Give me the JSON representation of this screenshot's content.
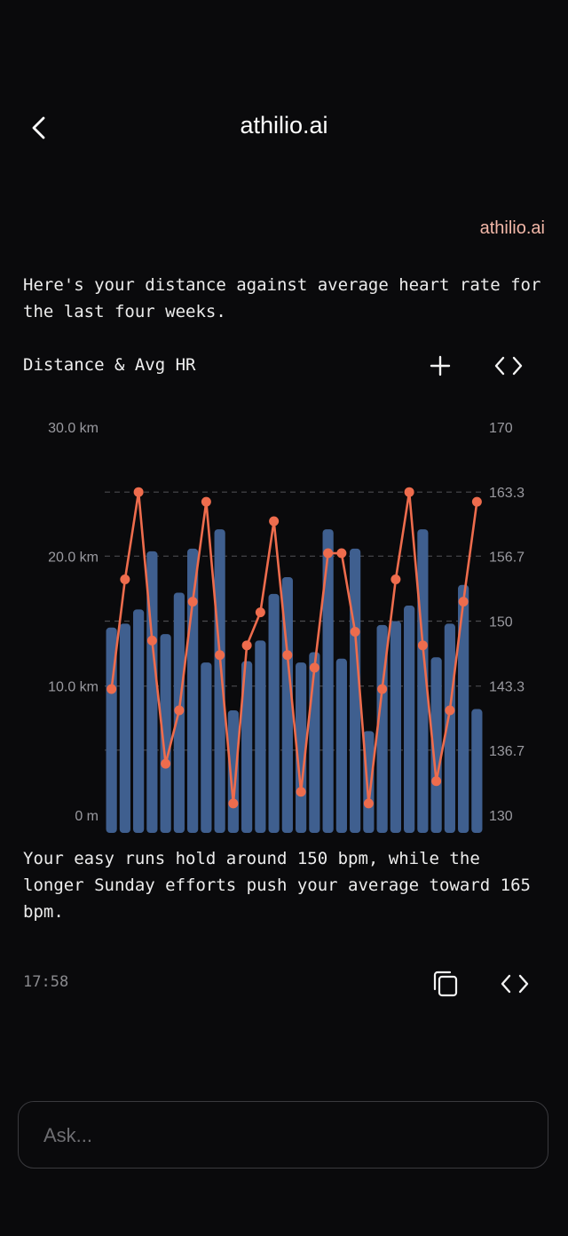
{
  "header": {
    "title": "athilio.ai",
    "back_icon": "chevron-left-icon"
  },
  "message": {
    "sender": "athilio.ai",
    "intro": "Here's your distance against average heart rate for the last four weeks.",
    "chart_title": "Distance & Avg HR",
    "outro": "Your easy runs hold around 150 bpm, while the longer Sunday efforts push your average toward 165 bpm.",
    "timestamp": "17:58",
    "icons": {
      "add": "plus-icon",
      "code": "code-icon",
      "copy": "copy-icon"
    }
  },
  "input": {
    "placeholder": "Ask..."
  },
  "colors": {
    "background": "#0a0a0c",
    "bar": "#3f5f8f",
    "line": "#ee6c4d",
    "sender": "#f2b7a8",
    "grid": "#4a4a4e",
    "axis_text": "#9a9aa0"
  },
  "chart_data": {
    "type": "bar",
    "title": "Distance & Avg HR",
    "y_left": {
      "ticks": [
        "30.0 km",
        "20.0 km",
        "10.0 km",
        "0 m"
      ],
      "ylim": [
        0,
        30
      ]
    },
    "y_right": {
      "ticks": [
        "170",
        "163.3",
        "156.7",
        "150",
        "143.3",
        "136.7",
        "130"
      ],
      "ylim": [
        130,
        170
      ]
    },
    "grid": "dashed horizontal",
    "series": [
      {
        "type": "bar",
        "axis": "left",
        "values": [
          14.5,
          14.8,
          15.9,
          20.4,
          14.0,
          17.2,
          20.6,
          11.8,
          22.1,
          8.1,
          11.9,
          13.5,
          17.1,
          18.4,
          11.8,
          12.6,
          22.1,
          12.1,
          20.6,
          6.5,
          14.7,
          15.0,
          16.2,
          22.1,
          12.2,
          14.8,
          17.8,
          8.2
        ]
      },
      {
        "type": "line",
        "axis": "right",
        "values": [
          143.0,
          154.3,
          163.3,
          148.0,
          135.3,
          140.8,
          152.0,
          162.3,
          146.5,
          131.2,
          147.5,
          150.9,
          160.3,
          146.5,
          132.4,
          145.2,
          157.0,
          157.0,
          148.9,
          131.2,
          143.0,
          154.3,
          163.3,
          147.5,
          133.5,
          140.8,
          152.0,
          162.3
        ]
      }
    ]
  }
}
